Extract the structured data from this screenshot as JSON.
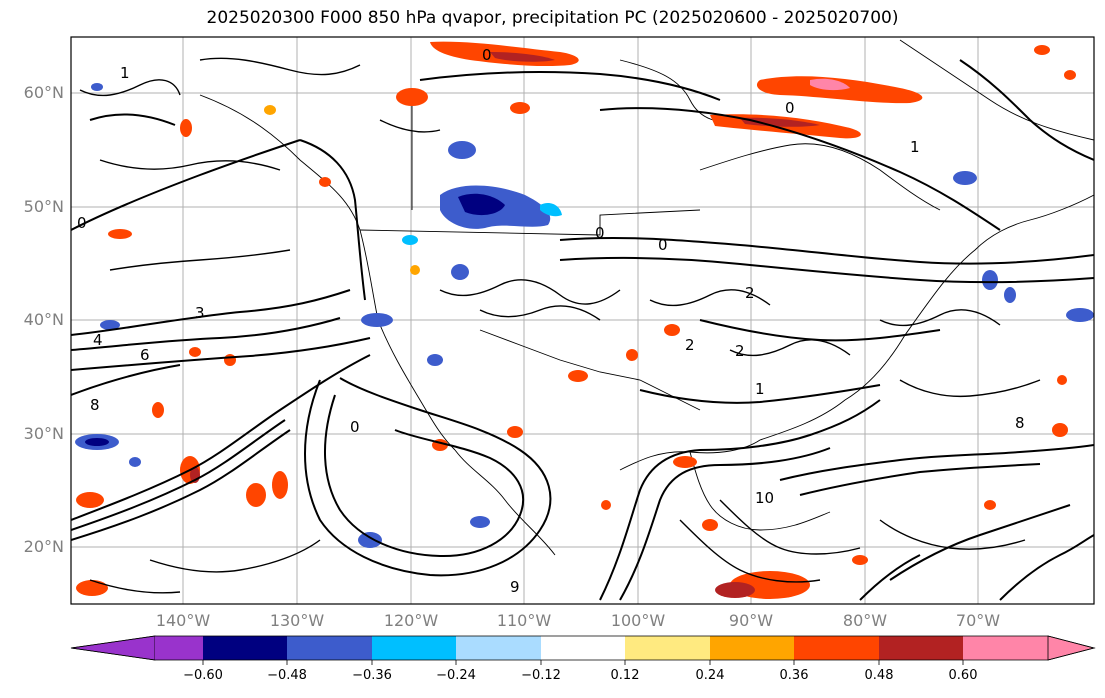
{
  "title": "2025020300 F000 850 hPa qvapor, precipitation PC (2025020600 - 2025020700)",
  "lat_labels": [
    "60°N",
    "50°N",
    "40°N",
    "30°N",
    "20°N"
  ],
  "lon_labels": [
    "140°W",
    "130°W",
    "120°W",
    "110°W",
    "100°W",
    "90°W",
    "80°W",
    "70°W"
  ],
  "contour_labels": [
    "0",
    "1",
    "2",
    "3",
    "4",
    "6",
    "8",
    "9",
    "10"
  ],
  "colorbar": {
    "colors": [
      "#9933cc",
      "#000080",
      "#3d5ccc",
      "#00bfff",
      "#aadcff",
      "#ffffff",
      "#ffea80",
      "#ffa500",
      "#ff4500",
      "#b22222",
      "#ff85a8"
    ],
    "ticks": [
      "−0.60",
      "−0.48",
      "−0.36",
      "−0.24",
      "−0.12",
      "0.12",
      "0.24",
      "0.36",
      "0.48",
      "0.60"
    ]
  }
}
